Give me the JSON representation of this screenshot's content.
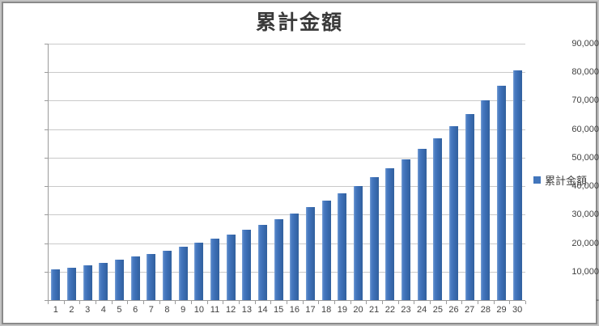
{
  "chart_data": {
    "type": "bar",
    "title": "累計金額",
    "categories": [
      "1",
      "2",
      "3",
      "4",
      "5",
      "6",
      "7",
      "8",
      "9",
      "10",
      "11",
      "12",
      "13",
      "14",
      "15",
      "16",
      "17",
      "18",
      "19",
      "20",
      "21",
      "22",
      "23",
      "24",
      "25",
      "26",
      "27",
      "28",
      "29",
      "30"
    ],
    "series": [
      {
        "name": "累計金額",
        "values": [
          10700,
          11500,
          12300,
          13200,
          14150,
          15200,
          16270,
          17440,
          18700,
          20050,
          21500,
          23050,
          24700,
          26470,
          28370,
          30420,
          32610,
          34950,
          37470,
          40170,
          43060,
          46160,
          49490,
          53050,
          56870,
          60960,
          65350,
          70060,
          75100,
          80510
        ]
      }
    ],
    "xlabel": "",
    "ylabel": "",
    "ylim": [
      0,
      90000
    ],
    "y_tick_interval": 10000,
    "y_tick_labels": [
      "90,000",
      "80,000",
      "70,000",
      "60,000",
      "50,000",
      "40,000",
      "30,000",
      "20,000",
      "10,000",
      "-"
    ],
    "grid": true,
    "legend_position": "right",
    "colors": {
      "bar_fill": "#4276bc",
      "bar_gradient": [
        "#7aa2d6",
        "#4a7cc2",
        "#3c6eb5",
        "#31609e"
      ],
      "gridline": "#c9c9c9",
      "axis_line": "#9b9b9b",
      "text": "#3f3f3f",
      "frame_outer": "#c2c2c2",
      "frame_inner": "#8a8a8a",
      "background": "#ffffff"
    }
  },
  "legend": {
    "label": "累計金額"
  }
}
